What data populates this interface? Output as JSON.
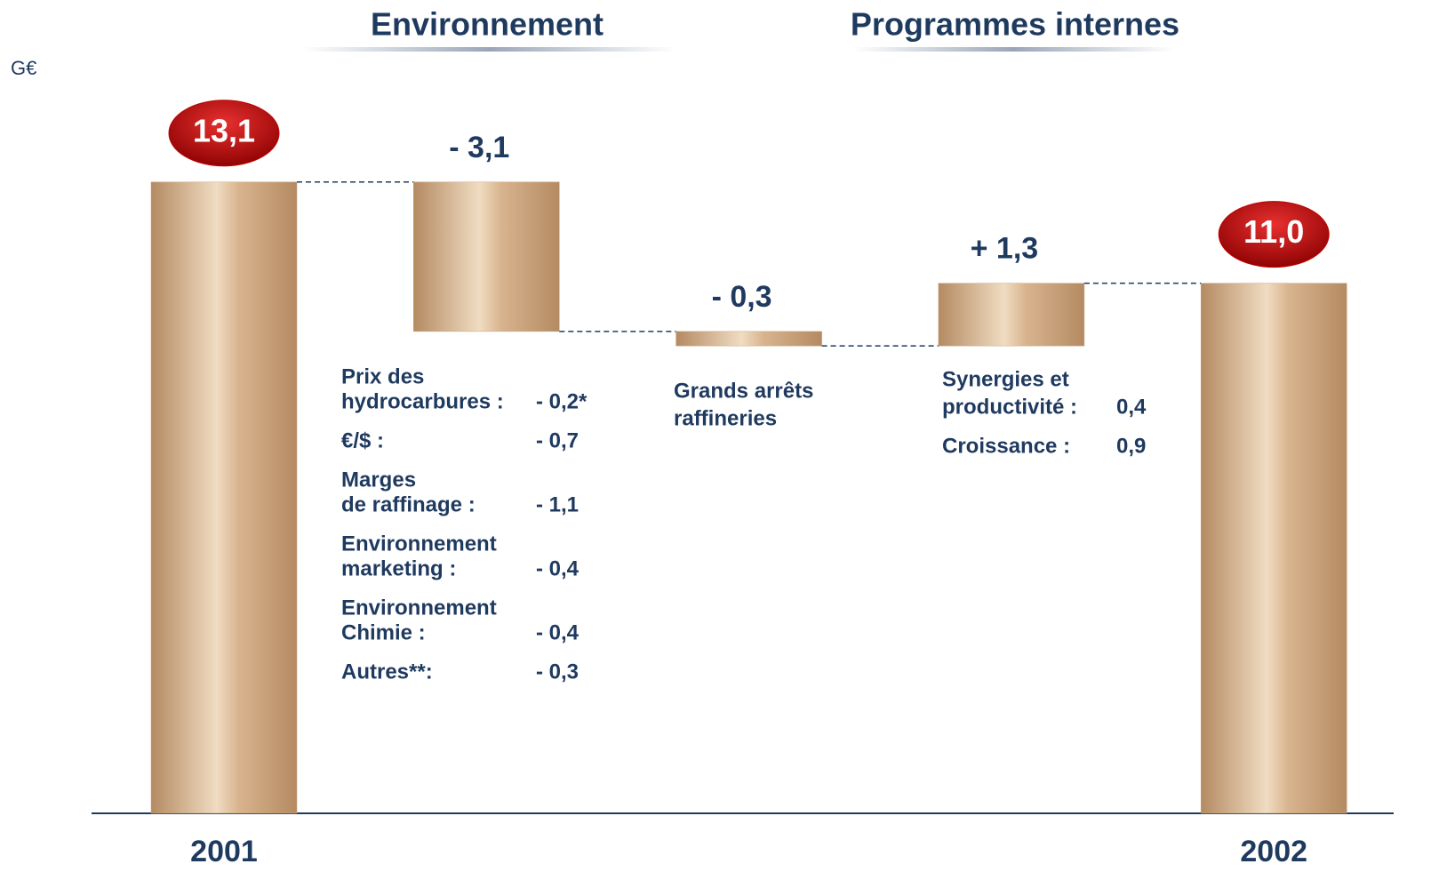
{
  "chart_data": {
    "type": "waterfall",
    "unit": "G€",
    "categories": [
      "2001",
      null,
      null,
      null,
      "2002"
    ],
    "values": [
      13.1,
      -3.1,
      -0.3,
      1.3,
      11.0
    ],
    "value_labels": [
      "13,1",
      "- 3,1",
      "- 0,3",
      "+ 1,3",
      "11,0"
    ],
    "totals": [
      true,
      false,
      false,
      false,
      true
    ],
    "ylim": [
      0,
      14
    ],
    "color": "#c9a27a",
    "total_label_color": "#c00000",
    "groups": [
      {
        "label": "Environnement"
      },
      {
        "label": "Programmes internes"
      }
    ],
    "details": [
      {
        "items": [
          {
            "label": [
              "Prix des",
              "hydrocarbures :"
            ],
            "value": "- 0,2*"
          },
          {
            "label": [
              "€/$ :"
            ],
            "value": "- 0,7"
          },
          {
            "label": [
              "Marges",
              "de raffinage :"
            ],
            "value": "- 1,1"
          },
          {
            "label": [
              "Environnement",
              "marketing :"
            ],
            "value": "- 0,4"
          },
          {
            "label": [
              "Environnement",
              "Chimie :"
            ],
            "value": "- 0,4"
          },
          {
            "label": [
              "Autres**:"
            ],
            "value": "- 0,3"
          }
        ]
      },
      {
        "items": [
          {
            "label": [
              "Grands arrêts",
              "raffineries"
            ]
          }
        ]
      },
      {
        "items": [
          {
            "label": [
              "Synergies et",
              "productivité :"
            ],
            "value": "0,4"
          },
          {
            "label": [
              "Croissance :"
            ],
            "value": "0,9"
          }
        ]
      }
    ]
  }
}
